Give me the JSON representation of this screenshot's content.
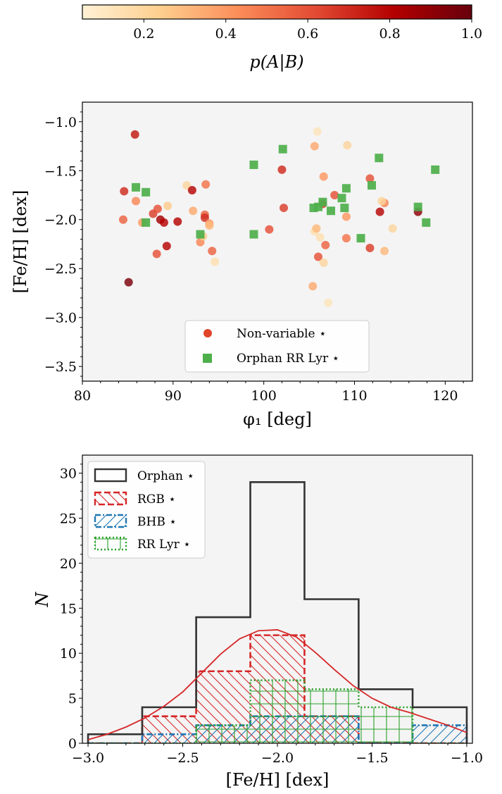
{
  "colorbar": {
    "label": "p(A|B)",
    "ticks": [
      "0.2",
      "0.4",
      "0.6",
      "0.8",
      "1.0"
    ],
    "tick_values": [
      0.2,
      0.4,
      0.6,
      0.8,
      1.0
    ],
    "range": [
      0.05,
      1.0
    ],
    "cmap": "OrRd",
    "colors": [
      "#fff1d6",
      "#fdcf8e",
      "#fc8d59",
      "#e34a33",
      "#b30000",
      "#67000d"
    ]
  },
  "chart_data": [
    {
      "type": "scatter",
      "xlabel": "φ₁ [deg]",
      "ylabel": "[Fe/H] [dex]",
      "xlim": [
        80,
        123
      ],
      "ylim": [
        -3.65,
        -0.8
      ],
      "xticks": [
        "80",
        "90",
        "100",
        "110",
        "120"
      ],
      "xtick_values": [
        80,
        90,
        100,
        110,
        120
      ],
      "yticks": [
        "−1.0",
        "−1.5",
        "−2.0",
        "−2.5",
        "−3.0",
        "−3.5"
      ],
      "ytick_values": [
        -1.0,
        -1.5,
        -2.0,
        -2.5,
        -3.0,
        -3.5
      ],
      "background": "#f4f4f4",
      "legend_position": "lower-center",
      "series": [
        {
          "name": "Non-variable ⋆",
          "marker": "circle",
          "legend_color": "#e0452a",
          "points": [
            {
              "x": 85.8,
              "y": -1.13,
              "p": 0.75
            },
            {
              "x": 84.6,
              "y": -1.71,
              "p": 0.7
            },
            {
              "x": 84.5,
              "y": -2.0,
              "p": 0.55
            },
            {
              "x": 85.1,
              "y": -2.64,
              "p": 0.95
            },
            {
              "x": 85.9,
              "y": -1.81,
              "p": 0.45
            },
            {
              "x": 86.6,
              "y": -2.03,
              "p": 0.4
            },
            {
              "x": 87.8,
              "y": -1.94,
              "p": 0.65
            },
            {
              "x": 88.3,
              "y": -1.89,
              "p": 0.6
            },
            {
              "x": 88.6,
              "y": -2.0,
              "p": 0.85
            },
            {
              "x": 89.0,
              "y": -2.03,
              "p": 0.8
            },
            {
              "x": 89.3,
              "y": -2.27,
              "p": 0.8
            },
            {
              "x": 88.2,
              "y": -2.35,
              "p": 0.6
            },
            {
              "x": 89.4,
              "y": -1.86,
              "p": 0.25
            },
            {
              "x": 90.5,
              "y": -2.02,
              "p": 0.8
            },
            {
              "x": 91.5,
              "y": -1.65,
              "p": 0.2
            },
            {
              "x": 92.1,
              "y": -1.7,
              "p": 0.8
            },
            {
              "x": 92.2,
              "y": -1.91,
              "p": 0.35
            },
            {
              "x": 93.0,
              "y": -2.23,
              "p": 0.45
            },
            {
              "x": 93.3,
              "y": -2.17,
              "p": 0.25
            },
            {
              "x": 93.5,
              "y": -1.95,
              "p": 0.55
            },
            {
              "x": 93.6,
              "y": -1.64,
              "p": 0.5
            },
            {
              "x": 93.5,
              "y": -1.98,
              "p": 0.7
            },
            {
              "x": 94.0,
              "y": -2.04,
              "p": 0.4
            },
            {
              "x": 94.0,
              "y": -2.06,
              "p": 0.3
            },
            {
              "x": 94.3,
              "y": -2.32,
              "p": 0.55
            },
            {
              "x": 94.6,
              "y": -2.43,
              "p": 0.15
            },
            {
              "x": 100.6,
              "y": -2.1,
              "p": 0.6
            },
            {
              "x": 102.0,
              "y": -1.49,
              "p": 0.7
            },
            {
              "x": 102.2,
              "y": -1.88,
              "p": 0.65
            },
            {
              "x": 105.6,
              "y": -1.25,
              "p": 0.35
            },
            {
              "x": 105.9,
              "y": -1.1,
              "p": 0.12
            },
            {
              "x": 105.4,
              "y": -2.68,
              "p": 0.35
            },
            {
              "x": 105.6,
              "y": -2.12,
              "p": 0.15
            },
            {
              "x": 105.8,
              "y": -2.09,
              "p": 0.3
            },
            {
              "x": 106.0,
              "y": -2.38,
              "p": 0.6
            },
            {
              "x": 106.2,
              "y": -2.18,
              "p": 0.15
            },
            {
              "x": 106.5,
              "y": -1.84,
              "p": 0.65
            },
            {
              "x": 106.6,
              "y": -1.56,
              "p": 0.4
            },
            {
              "x": 106.6,
              "y": -2.44,
              "p": 0.2
            },
            {
              "x": 106.8,
              "y": -2.26,
              "p": 0.55
            },
            {
              "x": 107.1,
              "y": -2.85,
              "p": 0.12
            },
            {
              "x": 107.8,
              "y": -1.75,
              "p": 0.6
            },
            {
              "x": 109.2,
              "y": -1.24,
              "p": 0.2
            },
            {
              "x": 109.1,
              "y": -1.97,
              "p": 0.4
            },
            {
              "x": 109.1,
              "y": -2.19,
              "p": 0.5
            },
            {
              "x": 111.7,
              "y": -1.58,
              "p": 0.6
            },
            {
              "x": 111.7,
              "y": -2.29,
              "p": 0.65
            },
            {
              "x": 112.8,
              "y": -1.92,
              "p": 0.8
            },
            {
              "x": 113.3,
              "y": -1.83,
              "p": 0.45
            },
            {
              "x": 113.0,
              "y": -1.81,
              "p": 0.2
            },
            {
              "x": 113.3,
              "y": -2.32,
              "p": 0.3
            },
            {
              "x": 114.2,
              "y": -2.09,
              "p": 0.2
            },
            {
              "x": 117.0,
              "y": -1.92,
              "p": 0.9
            }
          ]
        },
        {
          "name": "Orphan RR Lyr ⋆",
          "marker": "square",
          "color": "#4daf4a",
          "points": [
            {
              "x": 85.9,
              "y": -1.67
            },
            {
              "x": 87.0,
              "y": -1.72
            },
            {
              "x": 87.0,
              "y": -2.03
            },
            {
              "x": 93.0,
              "y": -2.15
            },
            {
              "x": 98.9,
              "y": -1.44
            },
            {
              "x": 98.9,
              "y": -2.15
            },
            {
              "x": 102.1,
              "y": -1.28
            },
            {
              "x": 105.5,
              "y": -1.88
            },
            {
              "x": 106.0,
              "y": -1.87
            },
            {
              "x": 106.5,
              "y": -1.82
            },
            {
              "x": 107.4,
              "y": -1.91
            },
            {
              "x": 108.6,
              "y": -1.78
            },
            {
              "x": 108.9,
              "y": -1.88
            },
            {
              "x": 109.1,
              "y": -1.68
            },
            {
              "x": 110.7,
              "y": -2.19
            },
            {
              "x": 111.9,
              "y": -1.65
            },
            {
              "x": 112.7,
              "y": -1.37
            },
            {
              "x": 117.0,
              "y": -1.87
            },
            {
              "x": 117.9,
              "y": -2.03
            },
            {
              "x": 118.9,
              "y": -1.49
            }
          ]
        }
      ]
    },
    {
      "type": "histogram",
      "xlabel": "[Fe/H] [dex]",
      "ylabel": "N",
      "xlim": [
        -3.03,
        -0.97
      ],
      "ylim": [
        0,
        32
      ],
      "xticks": [
        "−3.0",
        "−2.5",
        "−2.0",
        "−1.5",
        "−1.0"
      ],
      "xtick_values": [
        -3.0,
        -2.5,
        -2.0,
        -1.5,
        -1.0
      ],
      "yticks": [
        "0",
        "5",
        "10",
        "15",
        "20",
        "25",
        "30"
      ],
      "ytick_values": [
        0,
        5,
        10,
        15,
        20,
        25,
        30
      ],
      "background": "#f4f4f4",
      "legend_position": "top-left",
      "bin_edges": [
        -3.0,
        -2.714,
        -2.429,
        -2.143,
        -1.857,
        -1.571,
        -1.286,
        -1.0
      ],
      "series": [
        {
          "name": "Orphan ⋆",
          "color": "#333333",
          "style": "solid",
          "hatch": "none",
          "counts": [
            1,
            4,
            14,
            29,
            16,
            6,
            4
          ]
        },
        {
          "name": "RGB ⋆",
          "color": "#d62728",
          "style": "dashed",
          "hatch": "backslash",
          "counts": [
            0,
            3,
            8,
            12,
            3,
            0,
            0
          ]
        },
        {
          "name": "BHB ⋆",
          "color": "#1f77b4",
          "style": "dashdot",
          "hatch": "slash",
          "counts": [
            0,
            1,
            2,
            3,
            3,
            0,
            2
          ]
        },
        {
          "name": "RR Lyr ⋆",
          "color": "#2ca02c",
          "style": "dotted",
          "hatch": "grid",
          "counts": [
            0,
            0,
            2,
            7,
            6,
            4,
            0
          ]
        }
      ],
      "kde": {
        "color": "#d62728",
        "x": [
          -3.0,
          -2.9,
          -2.8,
          -2.7,
          -2.6,
          -2.5,
          -2.4,
          -2.3,
          -2.2,
          -2.1,
          -2.0,
          -1.9,
          -1.8,
          -1.7,
          -1.6,
          -1.5,
          -1.4,
          -1.3,
          -1.2,
          -1.1,
          -1.0
        ],
        "y": [
          0.4,
          1.0,
          1.8,
          2.8,
          4.1,
          5.7,
          7.8,
          9.9,
          11.6,
          12.5,
          12.6,
          11.8,
          10.1,
          8.2,
          6.4,
          5.0,
          4.0,
          3.4,
          2.7,
          2.0,
          1.2
        ]
      }
    }
  ]
}
